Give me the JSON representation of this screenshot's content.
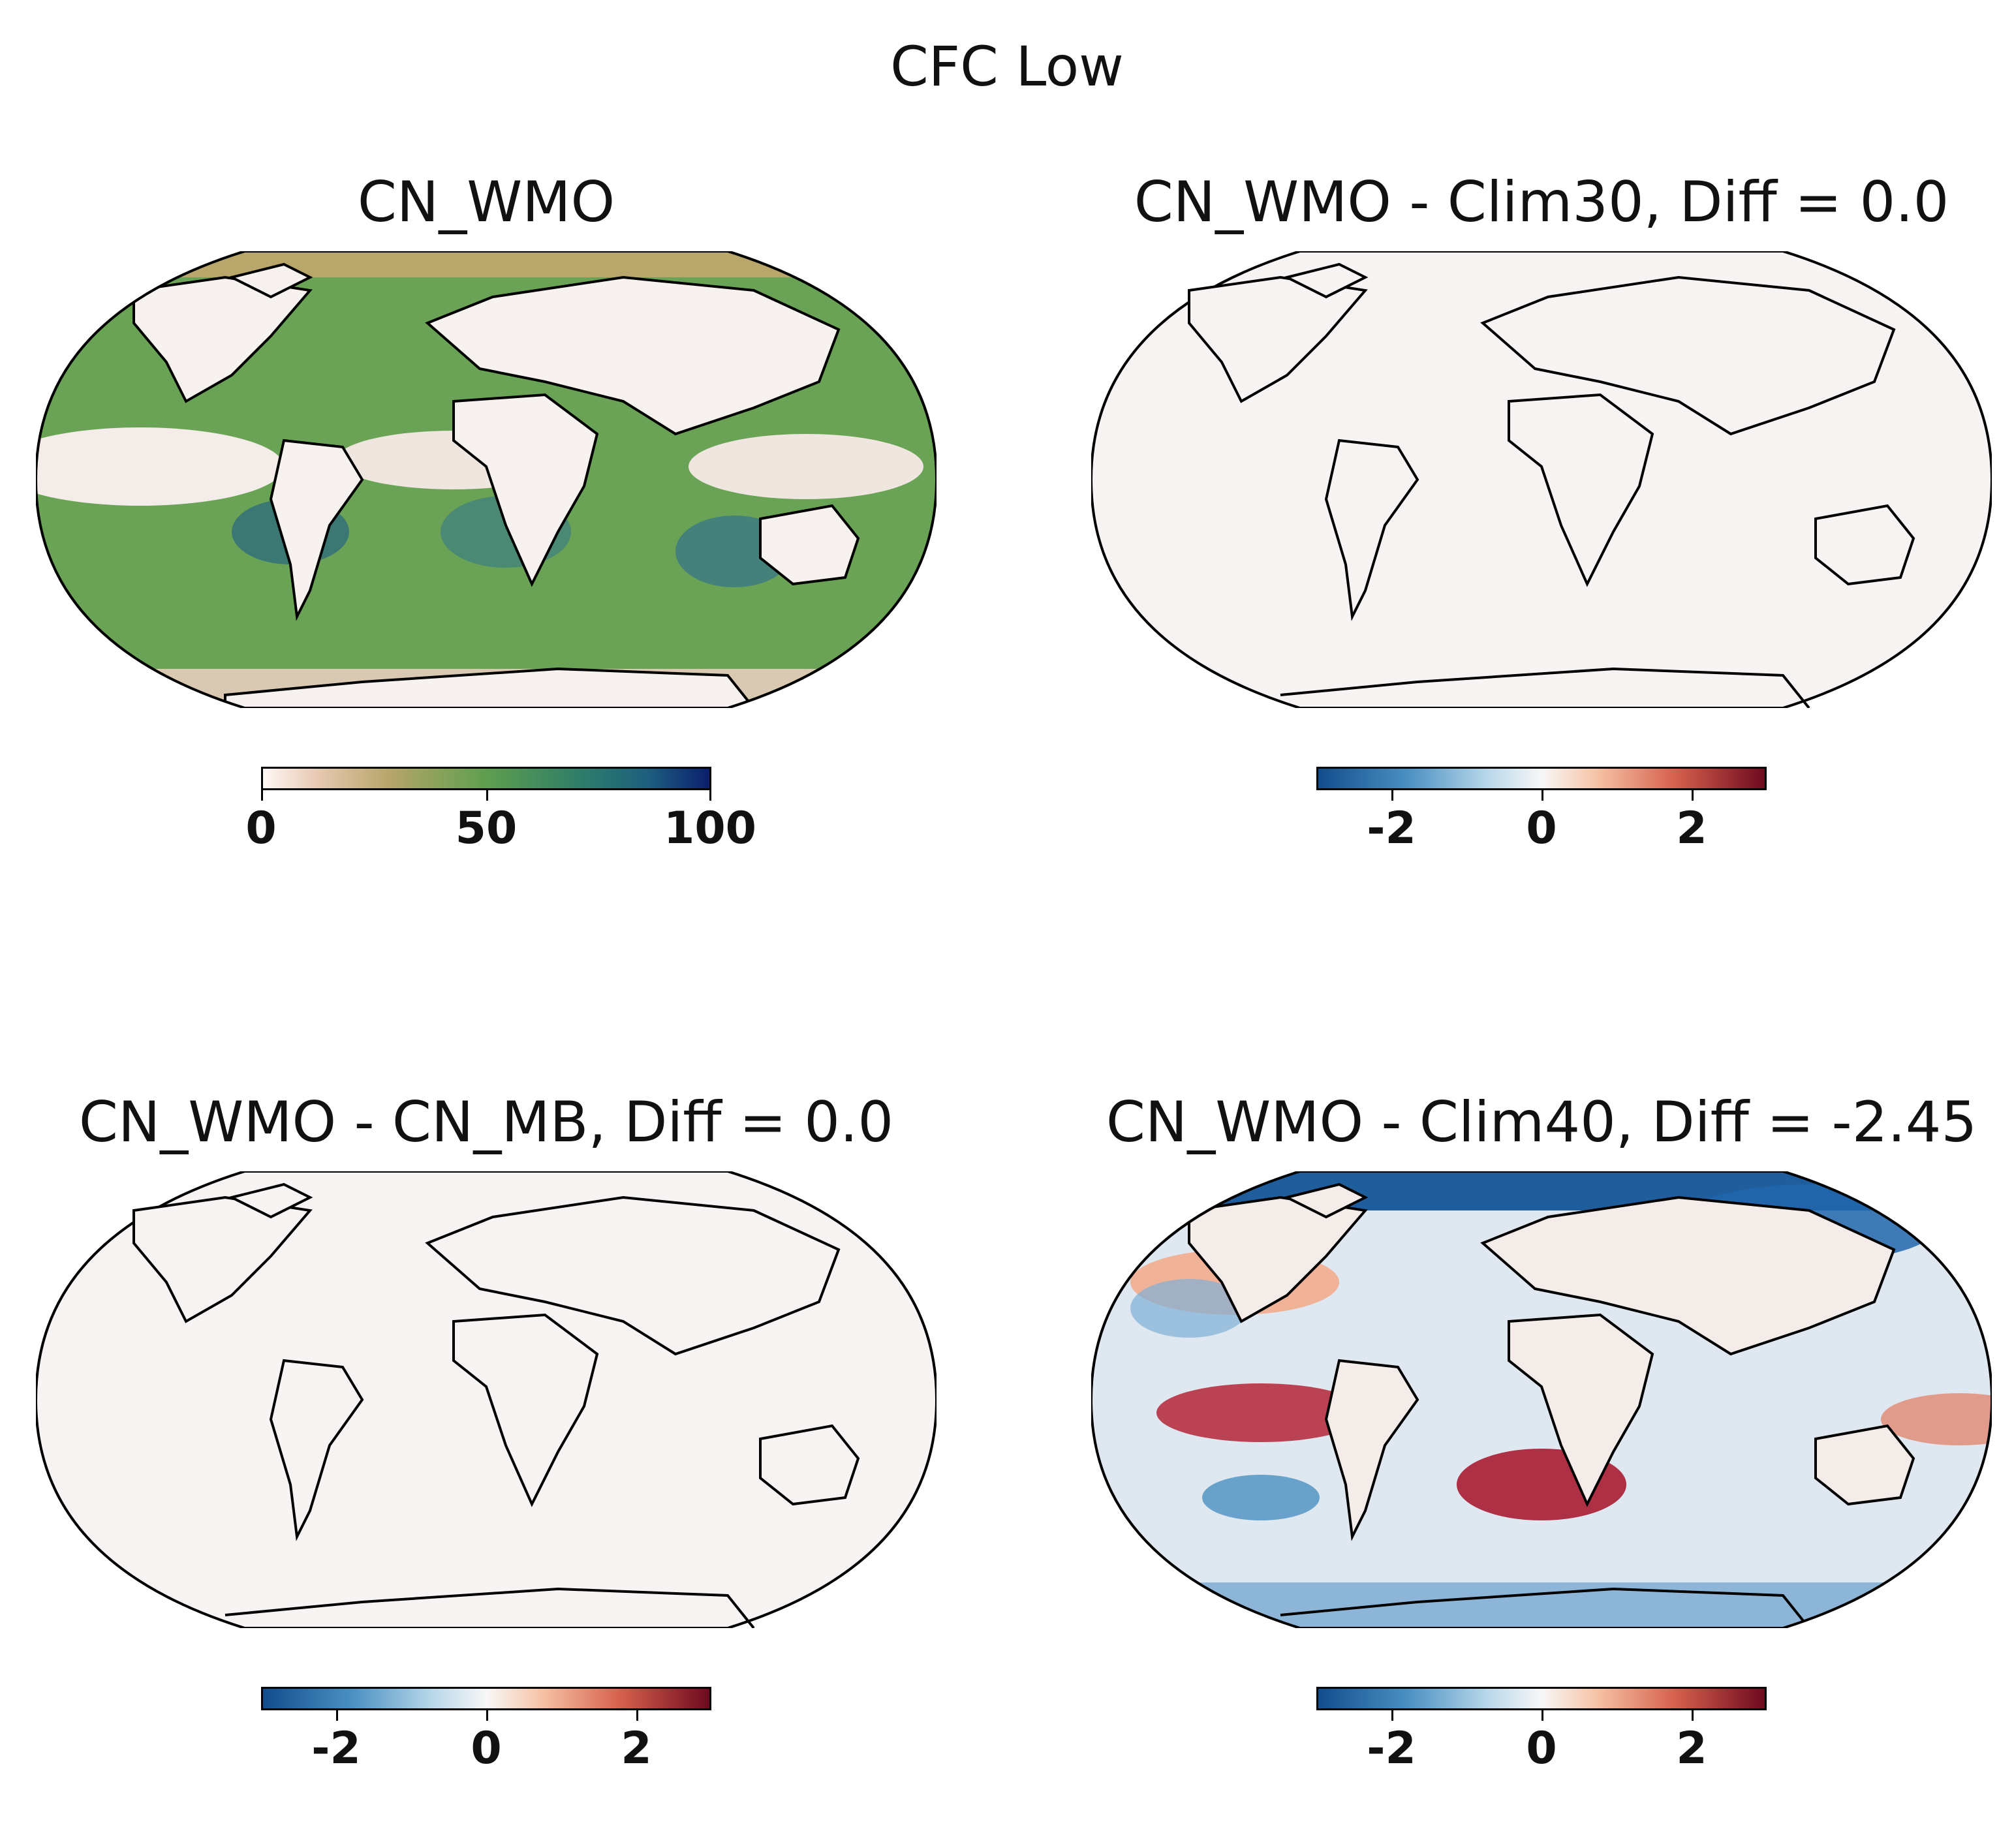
{
  "figure": {
    "title": "CFC Low"
  },
  "panels": [
    {
      "title": "CN_WMO",
      "field": "absolute",
      "colormap": "gist_earth_r",
      "colorbar": {
        "min": 0,
        "max": 100,
        "ticks": [
          "0",
          "50",
          "100"
        ]
      }
    },
    {
      "title": "CN_WMO - Clim30, Diff = 0.0",
      "field": "zero-diff",
      "colormap": "RdBu_r",
      "colorbar": {
        "min": -3,
        "max": 3,
        "ticks": [
          "-2",
          "0",
          "2"
        ]
      }
    },
    {
      "title": "CN_WMO - CN_MB, Diff = 0.0",
      "field": "zero-diff",
      "colormap": "RdBu_r",
      "colorbar": {
        "min": -3,
        "max": 3,
        "ticks": [
          "-2",
          "0",
          "2"
        ]
      }
    },
    {
      "title": "CN_WMO - Clim40, Diff = -2.45",
      "field": "noisy-diff",
      "colormap": "RdBu_r",
      "colorbar": {
        "min": -3,
        "max": 3,
        "ticks": [
          "-2",
          "0",
          "2"
        ]
      }
    }
  ],
  "colors": {
    "ocean_field_light": "#f5f0ee",
    "earth_green": "#5e9e4e",
    "earth_tan": "#b8a66a",
    "earth_blue": "#3a6f92",
    "diff_red": "#b2182b",
    "diff_blue": "#2166ac",
    "coast": "#000000"
  }
}
